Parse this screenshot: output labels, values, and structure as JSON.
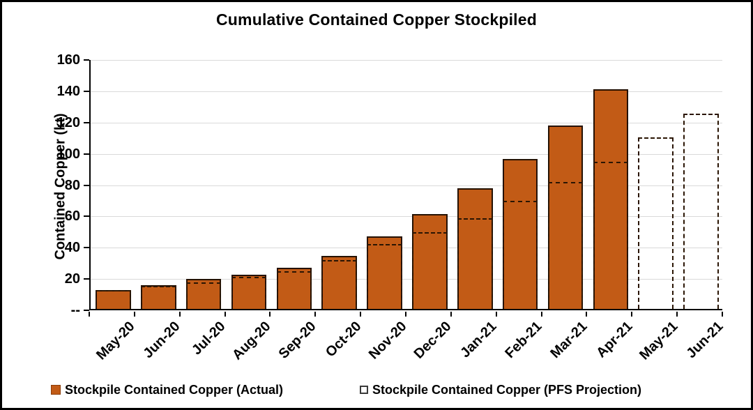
{
  "title": "Cumulative Contained Copper Stockpiled",
  "chart_data": {
    "type": "bar",
    "title": "Cumulative Contained Copper Stockpiled",
    "xlabel": "",
    "ylabel": "Contained Copper (kt)",
    "ylim": [
      0,
      160
    ],
    "ytick_step": 20,
    "ytick_labels": [
      "--",
      "20",
      "40",
      "60",
      "80",
      "100",
      "120",
      "140",
      "160"
    ],
    "grid": true,
    "legend_position": "bottom",
    "categories": [
      "May-20",
      "Jun-20",
      "Jul-20",
      "Aug-20",
      "Sep-20",
      "Oct-20",
      "Nov-20",
      "Dec-20",
      "Jan-21",
      "Feb-21",
      "Mar-21",
      "Apr-21",
      "May-21",
      "Jun-21"
    ],
    "series": [
      {
        "name": "Stockpile Contained Copper (Actual)",
        "style": "filled",
        "values": [
          12,
          15,
          19,
          22,
          26.5,
          34,
          46.5,
          60.5,
          77,
          96,
          117,
          140.5,
          null,
          null
        ]
      },
      {
        "name": "Stockpile Contained Copper (PFS Projection)",
        "style": "dashed-outline",
        "values": [
          12,
          14.5,
          17,
          20.5,
          24,
          31,
          41.5,
          49,
          58,
          69,
          81,
          94,
          109.5,
          125
        ]
      }
    ]
  },
  "colors": {
    "bar_fill": "#C25B16",
    "bar_border": "#241102",
    "projection_dash": "#2A1503",
    "gridline": "#D9D9D9",
    "axis": "#000000",
    "text": "#000000"
  }
}
